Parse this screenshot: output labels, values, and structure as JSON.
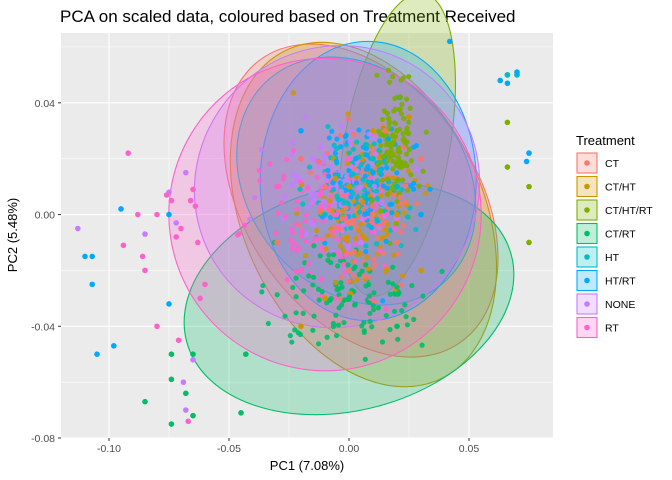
{
  "chart_data": {
    "type": "scatter",
    "title": "PCA on scaled data, coloured based on Treatment Received",
    "xlabel": "PC1 (7.08%)",
    "ylabel": "PC2 (5.48%)",
    "xlim": [
      -0.12,
      0.085
    ],
    "ylim": [
      -0.08,
      0.065
    ],
    "xticks": [
      -0.1,
      -0.05,
      0.0,
      0.05
    ],
    "xtick_labels": [
      "-0.10",
      "-0.05",
      "0.00",
      "0.05"
    ],
    "yticks": [
      -0.08,
      -0.04,
      0.0,
      0.04
    ],
    "ytick_labels": [
      "-0.08",
      "-0.04",
      "0.00",
      "0.04"
    ],
    "grid": true,
    "legend": {
      "title": "Treatment",
      "position": "right",
      "entries": [
        "CT",
        "CT/HT",
        "CT/HT/RT",
        "CT/RT",
        "HT",
        "HT/RT",
        "NONE",
        "RT"
      ]
    },
    "series": [
      {
        "name": "CT",
        "color": "#F8766D",
        "ellipse": {
          "cx": 0.005,
          "cy": 0.005,
          "rx": 0.048,
          "ry": 0.062,
          "angle": -35
        },
        "points": [
          [
            -0.02,
            0.02
          ],
          [
            0.01,
            0.0
          ],
          [
            0.02,
            -0.01
          ],
          [
            -0.01,
            0.01
          ],
          [
            0.0,
            -0.02
          ],
          [
            0.015,
            0.03
          ],
          [
            -0.03,
            -0.01
          ],
          [
            0.03,
            0.02
          ]
        ]
      },
      {
        "name": "CT/HT",
        "color": "#CD9600",
        "ellipse": {
          "cx": 0.006,
          "cy": 0.0,
          "rx": 0.05,
          "ry": 0.065,
          "angle": -25
        },
        "points": [
          [
            0.01,
            0.03
          ],
          [
            -0.01,
            -0.03
          ],
          [
            0.02,
            0.0
          ],
          [
            0.03,
            -0.02
          ],
          [
            0.0,
            0.01
          ],
          [
            -0.02,
            -0.04
          ],
          [
            0.025,
            0.035
          ]
        ]
      },
      {
        "name": "CT/HT/RT",
        "color": "#7CAE00",
        "ellipse": {
          "cx": 0.02,
          "cy": 0.025,
          "rx": 0.022,
          "ry": 0.055,
          "angle": 10
        },
        "points": [
          [
            0.066,
            0.05
          ],
          [
            0.07,
            0.05
          ],
          [
            0.075,
            0.01
          ],
          [
            0.066,
            0.017
          ],
          [
            0.075,
            -0.01
          ],
          [
            0.066,
            0.033
          ],
          [
            0.02,
            0.03
          ],
          [
            0.01,
            0.02
          ]
        ]
      },
      {
        "name": "CT/RT",
        "color": "#00BE67",
        "ellipse": {
          "cx": 0.0,
          "cy": -0.03,
          "rx": 0.07,
          "ry": 0.04,
          "angle": -15
        },
        "points": [
          [
            -0.085,
            -0.067
          ],
          [
            -0.074,
            -0.05
          ],
          [
            -0.068,
            -0.064
          ],
          [
            -0.065,
            -0.072
          ],
          [
            -0.045,
            -0.071
          ],
          [
            -0.043,
            -0.05
          ],
          [
            -0.074,
            -0.075
          ],
          [
            -0.074,
            -0.059
          ],
          [
            -0.065,
            -0.05
          ],
          [
            0.0,
            -0.03
          ],
          [
            0.02,
            -0.04
          ],
          [
            -0.02,
            -0.02
          ]
        ]
      },
      {
        "name": "HT",
        "color": "#00BFC4",
        "ellipse": {
          "cx": 0.003,
          "cy": 0.012,
          "rx": 0.045,
          "ry": 0.048,
          "angle": -40
        },
        "points": [
          [
            0.066,
            0.05
          ],
          [
            0.07,
            0.05
          ],
          [
            0.01,
            0.02
          ],
          [
            -0.01,
            0.0
          ],
          [
            0.02,
            0.01
          ]
        ]
      },
      {
        "name": "HT/RT",
        "color": "#00A9FF",
        "ellipse": {
          "cx": 0.008,
          "cy": 0.012,
          "rx": 0.045,
          "ry": 0.05,
          "angle": 0
        },
        "points": [
          [
            0.042,
            0.062
          ],
          [
            0.063,
            0.048
          ],
          [
            0.066,
            0.047
          ],
          [
            0.07,
            0.051
          ],
          [
            0.075,
            0.022
          ],
          [
            0.074,
            0.019
          ],
          [
            -0.11,
            -0.015
          ],
          [
            -0.107,
            -0.015
          ],
          [
            -0.107,
            -0.025
          ],
          [
            -0.105,
            -0.05
          ],
          [
            -0.098,
            -0.047
          ],
          [
            -0.095,
            0.002
          ],
          [
            -0.075,
            0.0
          ],
          [
            -0.075,
            -0.032
          ],
          [
            0.01,
            0.015
          ],
          [
            -0.02,
            0.03
          ],
          [
            0.03,
            0.0
          ]
        ]
      },
      {
        "name": "NONE",
        "color": "#C77CFF",
        "ellipse": {
          "cx": -0.005,
          "cy": 0.01,
          "rx": 0.06,
          "ry": 0.05,
          "angle": -35
        },
        "points": [
          [
            -0.113,
            -0.005
          ],
          [
            -0.085,
            -0.007
          ],
          [
            -0.075,
            0.008
          ],
          [
            -0.072,
            -0.003
          ],
          [
            -0.069,
            -0.06
          ],
          [
            -0.068,
            -0.07
          ],
          [
            -0.065,
            -0.052
          ],
          [
            -0.068,
            0.015
          ],
          [
            -0.015,
            0.02
          ],
          [
            0.005,
            -0.01
          ]
        ]
      },
      {
        "name": "RT",
        "color": "#FF61CC",
        "ellipse": {
          "cx": -0.01,
          "cy": 0.0,
          "rx": 0.065,
          "ry": 0.056,
          "angle": -40
        },
        "points": [
          [
            -0.092,
            0.022
          ],
          [
            -0.094,
            -0.011
          ],
          [
            -0.088,
            0.0
          ],
          [
            -0.086,
            -0.015
          ],
          [
            -0.085,
            -0.02
          ],
          [
            -0.08,
            -0.04
          ],
          [
            -0.08,
            0.0
          ],
          [
            -0.076,
            0.007
          ],
          [
            -0.074,
            0.005
          ],
          [
            -0.072,
            -0.008
          ],
          [
            -0.071,
            -0.045
          ],
          [
            -0.07,
            -0.005
          ],
          [
            -0.067,
            -0.074
          ],
          [
            -0.066,
            0.005
          ],
          [
            -0.065,
            0.009
          ],
          [
            -0.064,
            0.003
          ],
          [
            -0.063,
            -0.01
          ],
          [
            -0.062,
            -0.03
          ],
          [
            -0.06,
            -0.025
          ],
          [
            -0.03,
            0.01
          ],
          [
            0.0,
            0.02
          ],
          [
            -0.02,
            -0.02
          ]
        ]
      }
    ]
  }
}
